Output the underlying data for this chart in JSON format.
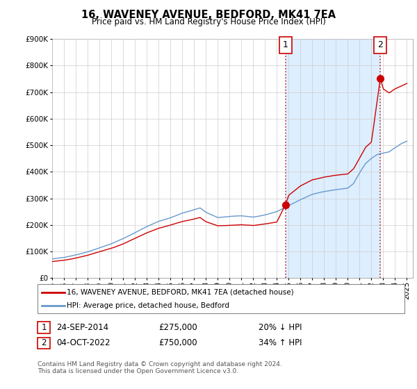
{
  "title": "16, WAVENEY AVENUE, BEDFORD, MK41 7EA",
  "subtitle": "Price paid vs. HM Land Registry's House Price Index (HPI)",
  "legend_line1": "16, WAVENEY AVENUE, BEDFORD, MK41 7EA (detached house)",
  "legend_line2": "HPI: Average price, detached house, Bedford",
  "footer": "Contains HM Land Registry data © Crown copyright and database right 2024.\nThis data is licensed under the Open Government Licence v3.0.",
  "sale1_label": "1",
  "sale1_date": "24-SEP-2014",
  "sale1_price": "£275,000",
  "sale1_hpi": "20% ↓ HPI",
  "sale1_year": 2014.73,
  "sale1_value": 275000,
  "sale2_label": "2",
  "sale2_date": "04-OCT-2022",
  "sale2_price": "£750,000",
  "sale2_hpi": "34% ↑ HPI",
  "sale2_year": 2022.76,
  "sale2_value": 750000,
  "red_color": "#cc0000",
  "blue_color": "#6699cc",
  "shade_color": "#ddeeff",
  "marker_border_color": "#cc0000",
  "ylim": [
    0,
    900000
  ],
  "xlim_start": 1995.0,
  "xlim_end": 2025.5,
  "background_color": "#ffffff",
  "grid_color": "#cccccc"
}
